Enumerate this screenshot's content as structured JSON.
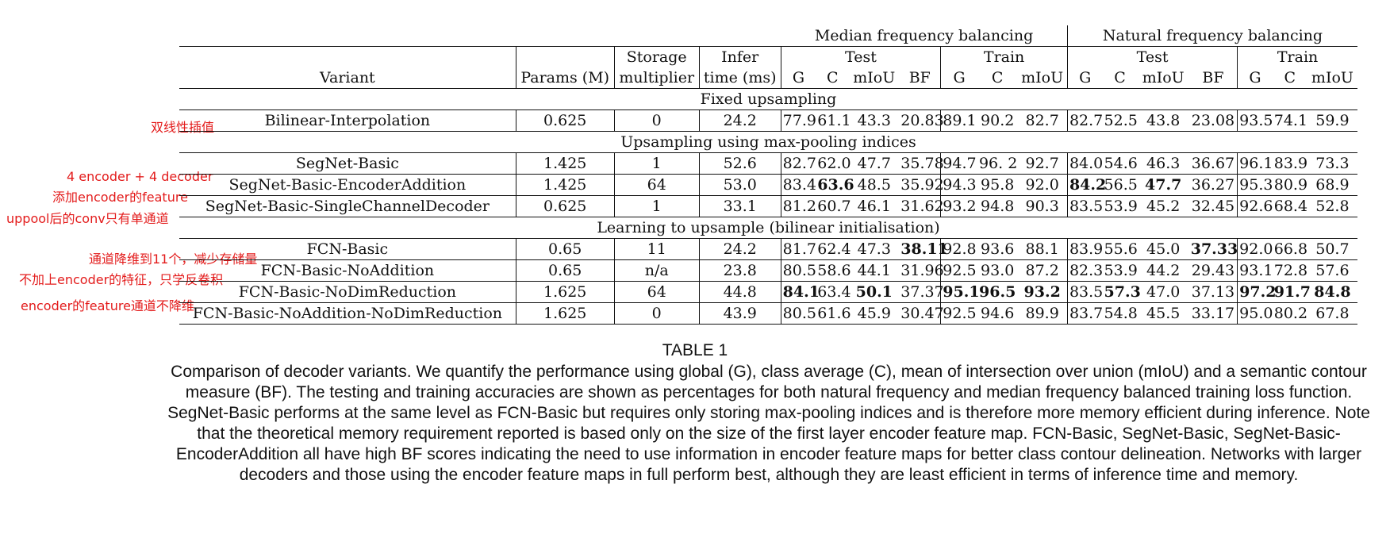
{
  "annotations": [
    "双线性插值",
    "4 encoder + 4 decoder",
    "添加encoder的feature",
    "uppool后的conv只有单通道",
    "通道降维到11个，减少存储量",
    "不加上encoder的特征，只学反卷积",
    "encoder的feature通道不降维"
  ],
  "table": {
    "group_headers": [
      "Median frequency balancing",
      "Natural frequency balancing"
    ],
    "sub_headers": [
      "Test",
      "Train",
      "Test",
      "Train"
    ],
    "col_headers": {
      "variant": "Variant",
      "params": "Params (M)",
      "storage_1": "Storage",
      "storage_2": "multiplier",
      "infer_1": "Infer",
      "infer_2": "time (ms)",
      "metrics": [
        "G",
        "C",
        "mIoU",
        "BF",
        "G",
        "C",
        "mIoU",
        "G",
        "C",
        "mIoU",
        "BF",
        "G",
        "C",
        "mIoU"
      ]
    },
    "sections": [
      {
        "title": "Fixed upsampling",
        "rows": [
          {
            "variant": "Bilinear-Interpolation",
            "params": "0.625",
            "storage": "0",
            "infer": "24.2",
            "vals": [
              "77.9",
              "61.1",
              "43.3",
              "20.83",
              "89.1",
              "90.2",
              "82.7",
              "82.7",
              "52.5",
              "43.8",
              "23.08",
              "93.5",
              "74.1",
              "59.9"
            ],
            "bold": []
          }
        ]
      },
      {
        "title": "Upsampling using max-pooling indices",
        "rows": [
          {
            "variant": "SegNet-Basic",
            "params": "1.425",
            "storage": "1",
            "infer": "52.6",
            "vals": [
              "82.7",
              "62.0",
              "47.7",
              "35.78",
              "94.7",
              "96. 2",
              "92.7",
              "84.0",
              "54.6",
              "46.3",
              "36.67",
              "96.1",
              "83.9",
              "73.3"
            ],
            "bold": []
          },
          {
            "variant": "SegNet-Basic-EncoderAddition",
            "params": "1.425",
            "storage": "64",
            "infer": "53.0",
            "vals": [
              "83.4",
              "63.6",
              "48.5",
              "35.92",
              "94.3",
              "95.8",
              "92.0",
              "84.2",
              "56.5",
              "47.7",
              "36.27",
              "95.3",
              "80.9",
              "68.9"
            ],
            "bold": [
              1,
              7,
              9
            ]
          },
          {
            "variant": "SegNet-Basic-SingleChannelDecoder",
            "params": "0.625",
            "storage": "1",
            "infer": "33.1",
            "vals": [
              "81.2",
              "60.7",
              "46.1",
              "31.62",
              "93.2",
              "94.8",
              "90.3",
              "83.5",
              "53.9",
              "45.2",
              "32.45",
              "92.6",
              "68.4",
              "52.8"
            ],
            "bold": []
          }
        ]
      },
      {
        "title": "Learning to upsample (bilinear initialisation)",
        "rows": [
          {
            "variant": "FCN-Basic",
            "params": "0.65",
            "storage": "11",
            "infer": "24.2",
            "vals": [
              "81.7",
              "62.4",
              "47.3",
              "38.11",
              "92.8",
              "93.6",
              "88.1",
              "83.9",
              "55.6",
              "45.0",
              "37.33",
              "92.0",
              "66.8",
              "50.7"
            ],
            "bold": [
              3,
              10
            ]
          },
          {
            "variant": "FCN-Basic-NoAddition",
            "params": "0.65",
            "storage": "n/a",
            "infer": "23.8",
            "vals": [
              "80.5",
              "58.6",
              "44.1",
              "31.96",
              "92.5",
              "93.0",
              "87.2",
              "82.3",
              "53.9",
              "44.2",
              "29.43",
              "93.1",
              "72.8",
              "57.6"
            ],
            "bold": []
          },
          {
            "variant": "FCN-Basic-NoDimReduction",
            "params": "1.625",
            "storage": "64",
            "infer": "44.8",
            "vals": [
              "84.1",
              "63.4",
              "50.1",
              "37.37",
              "95.1",
              "96.5",
              "93.2",
              "83.5",
              "57.3",
              "47.0",
              "37.13",
              "97.2",
              "91.7",
              "84.8"
            ],
            "bold": [
              0,
              2,
              4,
              5,
              6,
              8,
              11,
              12,
              13
            ]
          },
          {
            "variant": "FCN-Basic-NoAddition-NoDimReduction",
            "params": "1.625",
            "storage": "0",
            "infer": "43.9",
            "vals": [
              "80.5",
              "61.6",
              "45.9",
              "30.47",
              "92.5",
              "94.6",
              "89.9",
              "83.7",
              "54.8",
              "45.5",
              "33.17",
              "95.0",
              "80.2",
              "67.8"
            ],
            "bold": []
          }
        ]
      }
    ]
  },
  "caption": {
    "title": "TABLE 1",
    "text": "Comparison of decoder variants. We quantify the performance using global (G), class average (C), mean of intersection over union (mIoU) and a semantic contour measure (BF). The testing and training accuracies are shown as percentages for both natural frequency and median frequency balanced training loss function. SegNet-Basic performs at the same level as FCN-Basic but requires only storing max-pooling indices and is therefore more memory efficient during inference. Note that the theoretical memory requirement reported is based only on the size of the first layer encoder feature map. FCN-Basic, SegNet-Basic, SegNet-Basic-EncoderAddition all have high BF scores indicating the need to use information in encoder feature maps for better class contour delineation. Networks with larger decoders and those using the encoder feature maps in full perform best, although they are least efficient in terms of inference time and memory."
  }
}
